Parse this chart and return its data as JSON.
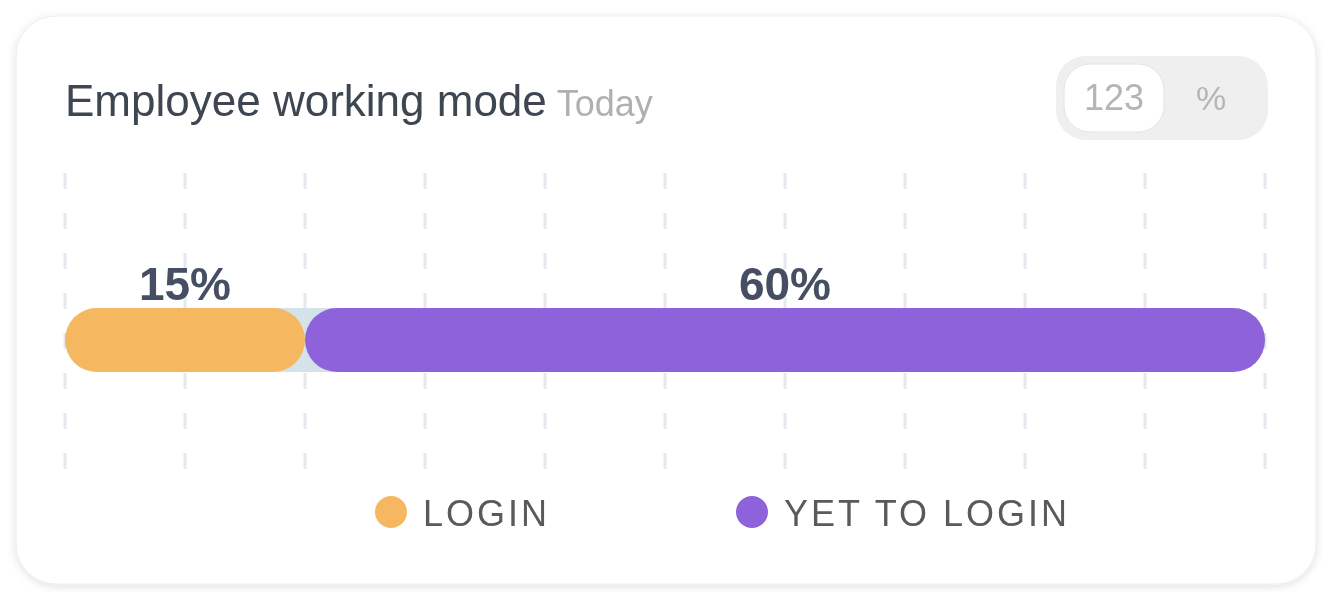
{
  "chart_data": {
    "type": "bar",
    "orientation": "horizontal",
    "stacked": true,
    "title": "Employee working mode",
    "subtitle": "Today",
    "categories": [
      null
    ],
    "series": [
      {
        "name": "LOGIN",
        "color": "#f5b860",
        "values": [
          15
        ],
        "value_labels": [
          "15%"
        ]
      },
      {
        "name": "YET TO LOGIN",
        "color": "#8d62db",
        "values": [
          60
        ],
        "value_labels": [
          "60%"
        ]
      }
    ],
    "grid": "x",
    "legend": "bottom",
    "annotations": [
      "123",
      "%"
    ]
  }
}
